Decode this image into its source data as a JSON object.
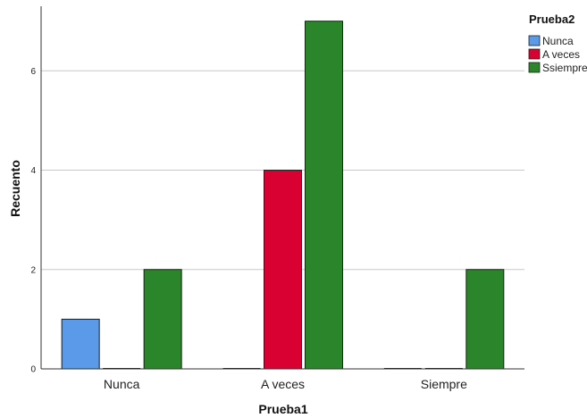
{
  "chart_data": {
    "type": "bar",
    "categories": [
      "Nunca",
      "A veces",
      "Siempre"
    ],
    "series": [
      {
        "name": "Nunca",
        "color": "#5b9ae8",
        "values": [
          1,
          0,
          0
        ]
      },
      {
        "name": "A veces",
        "color": "#d90032",
        "values": [
          0,
          4,
          0
        ]
      },
      {
        "name": "Ssiempre",
        "color": "#2b862b",
        "values": [
          2,
          7,
          2
        ]
      }
    ],
    "xlabel": "Prueba1",
    "ylabel": "Recuento",
    "legend_title": "Prueba2",
    "legend_position": "top-right",
    "ylim": [
      0,
      7.3
    ],
    "yticks": [
      0,
      2,
      4,
      6
    ],
    "grid": true
  }
}
